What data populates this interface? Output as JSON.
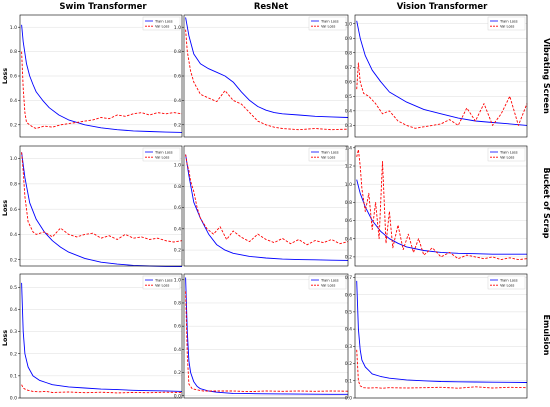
{
  "figure": {
    "columns": [
      "Swim Transformer",
      "ResNet",
      "Vision Transformer"
    ],
    "rows": [
      "Vibrating Screen",
      "Bucket of Scrap",
      "Emulsion"
    ],
    "ylabel": "Loss",
    "colors": {
      "train": "#0000ff",
      "val": "#ff0000"
    }
  },
  "chart_data": [
    {
      "type": "line",
      "column": "Swim Transformer",
      "row": "Vibrating Screen",
      "ylabel": "Loss",
      "ylim": [
        0.1,
        1.1
      ],
      "yticks": [
        0.2,
        0.4,
        0.6,
        0.8,
        1.0
      ],
      "xlim": [
        0,
        100
      ],
      "grid": true,
      "legend": "top-right",
      "series": [
        {
          "name": "Train Loss",
          "style": "solid",
          "color": "#0000ff",
          "x": [
            1,
            2,
            4,
            6,
            8,
            10,
            14,
            18,
            24,
            30,
            40,
            50,
            60,
            70,
            80,
            90,
            100
          ],
          "values": [
            1.02,
            0.88,
            0.7,
            0.6,
            0.53,
            0.47,
            0.4,
            0.34,
            0.28,
            0.24,
            0.2,
            0.175,
            0.16,
            0.15,
            0.145,
            0.14,
            0.138
          ]
        },
        {
          "name": "Val Loss",
          "style": "dashed",
          "color": "#ff0000",
          "x": [
            1,
            2,
            3,
            4,
            6,
            8,
            10,
            15,
            20,
            25,
            30,
            35,
            40,
            45,
            50,
            55,
            60,
            65,
            70,
            75,
            80,
            85,
            90,
            95,
            100
          ],
          "values": [
            0.8,
            0.5,
            0.3,
            0.22,
            0.2,
            0.18,
            0.17,
            0.19,
            0.18,
            0.2,
            0.21,
            0.22,
            0.23,
            0.24,
            0.26,
            0.25,
            0.28,
            0.27,
            0.29,
            0.3,
            0.28,
            0.3,
            0.29,
            0.3,
            0.29
          ]
        }
      ]
    },
    {
      "type": "line",
      "column": "ResNet",
      "row": "Vibrating Screen",
      "ylabel": "",
      "ylim": [
        0.1,
        1.1
      ],
      "yticks": [
        0.2,
        0.4,
        0.6,
        0.8,
        1.0
      ],
      "xlim": [
        0,
        100
      ],
      "grid": true,
      "legend": "top-right",
      "series": [
        {
          "name": "Train Loss",
          "style": "solid",
          "color": "#0000ff",
          "x": [
            1,
            3,
            6,
            10,
            15,
            20,
            25,
            30,
            35,
            40,
            45,
            50,
            55,
            60,
            70,
            80,
            90,
            100
          ],
          "values": [
            1.08,
            0.93,
            0.78,
            0.7,
            0.66,
            0.63,
            0.6,
            0.55,
            0.47,
            0.4,
            0.35,
            0.32,
            0.3,
            0.29,
            0.28,
            0.27,
            0.265,
            0.26
          ]
        },
        {
          "name": "Val Loss",
          "style": "dashed",
          "color": "#ff0000",
          "x": [
            1,
            2,
            4,
            6,
            8,
            10,
            15,
            20,
            25,
            30,
            35,
            40,
            45,
            50,
            55,
            60,
            70,
            80,
            90,
            100
          ],
          "values": [
            0.98,
            0.8,
            0.64,
            0.55,
            0.5,
            0.45,
            0.42,
            0.39,
            0.48,
            0.4,
            0.37,
            0.3,
            0.23,
            0.2,
            0.18,
            0.17,
            0.16,
            0.17,
            0.16,
            0.165
          ]
        }
      ]
    },
    {
      "type": "line",
      "column": "Vision Transformer",
      "row": "Vibrating Screen",
      "ylabel": "",
      "ylim": [
        0.22,
        1.06
      ],
      "yticks": [
        0.3,
        0.4,
        0.5,
        0.6,
        0.7,
        0.8,
        0.9,
        1.0
      ],
      "xlim": [
        0,
        100
      ],
      "grid": true,
      "legend": "top-right",
      "series": [
        {
          "name": "Train Loss",
          "style": "solid",
          "color": "#0000ff",
          "x": [
            1,
            3,
            6,
            10,
            15,
            20,
            30,
            40,
            50,
            60,
            70,
            80,
            90,
            100
          ],
          "values": [
            1.02,
            0.9,
            0.78,
            0.68,
            0.6,
            0.53,
            0.46,
            0.41,
            0.38,
            0.35,
            0.33,
            0.32,
            0.31,
            0.3
          ]
        },
        {
          "name": "Val Loss",
          "style": "dashed",
          "color": "#ff0000",
          "x": [
            1,
            2,
            3,
            5,
            8,
            12,
            16,
            20,
            25,
            30,
            35,
            40,
            45,
            50,
            55,
            60,
            65,
            70,
            75,
            80,
            85,
            90,
            95,
            100
          ],
          "values": [
            0.55,
            0.73,
            0.6,
            0.52,
            0.5,
            0.45,
            0.38,
            0.4,
            0.33,
            0.3,
            0.28,
            0.29,
            0.3,
            0.31,
            0.34,
            0.3,
            0.42,
            0.33,
            0.45,
            0.3,
            0.38,
            0.5,
            0.3,
            0.45
          ]
        }
      ]
    },
    {
      "type": "line",
      "column": "Swim Transformer",
      "row": "Bucket of Scrap",
      "ylabel": "Loss",
      "ylim": [
        0.15,
        1.1
      ],
      "yticks": [
        0.2,
        0.4,
        0.6,
        0.8,
        1.0
      ],
      "xlim": [
        0,
        100
      ],
      "grid": true,
      "legend": "top-right",
      "series": [
        {
          "name": "Train Loss",
          "style": "solid",
          "color": "#0000ff",
          "x": [
            1,
            3,
            6,
            10,
            15,
            20,
            25,
            30,
            40,
            50,
            60,
            70,
            80,
            90,
            100
          ],
          "values": [
            1.05,
            0.85,
            0.65,
            0.52,
            0.42,
            0.35,
            0.3,
            0.26,
            0.21,
            0.18,
            0.165,
            0.155,
            0.15,
            0.147,
            0.145
          ]
        },
        {
          "name": "Val Loss",
          "style": "dashed",
          "color": "#ff0000",
          "x": [
            1,
            2,
            3,
            5,
            8,
            10,
            15,
            20,
            25,
            30,
            35,
            40,
            45,
            50,
            55,
            60,
            65,
            70,
            75,
            80,
            85,
            90,
            95,
            100
          ],
          "values": [
            1.05,
            0.9,
            0.7,
            0.5,
            0.42,
            0.4,
            0.42,
            0.38,
            0.45,
            0.4,
            0.38,
            0.4,
            0.41,
            0.37,
            0.39,
            0.36,
            0.4,
            0.37,
            0.38,
            0.36,
            0.37,
            0.35,
            0.34,
            0.35
          ]
        }
      ]
    },
    {
      "type": "line",
      "column": "ResNet",
      "row": "Bucket of Scrap",
      "ylabel": "",
      "ylim": [
        0.05,
        1.18
      ],
      "yticks": [
        0.2,
        0.4,
        0.6,
        0.8,
        1.0
      ],
      "xlim": [
        0,
        100
      ],
      "grid": true,
      "legend": "top-right",
      "series": [
        {
          "name": "Train Loss",
          "style": "solid",
          "color": "#0000ff",
          "x": [
            1,
            3,
            6,
            10,
            15,
            20,
            25,
            30,
            40,
            50,
            60,
            70,
            80,
            90,
            100
          ],
          "values": [
            1.1,
            0.9,
            0.65,
            0.5,
            0.35,
            0.25,
            0.2,
            0.17,
            0.14,
            0.125,
            0.115,
            0.11,
            0.108,
            0.105,
            0.103
          ]
        },
        {
          "name": "Val Loss",
          "style": "dashed",
          "color": "#ff0000",
          "x": [
            1,
            2,
            3,
            4,
            6,
            8,
            10,
            14,
            18,
            22,
            26,
            30,
            35,
            40,
            45,
            50,
            55,
            60,
            65,
            70,
            75,
            80,
            85,
            90,
            95,
            100
          ],
          "values": [
            1.1,
            1.0,
            0.95,
            0.85,
            0.75,
            0.6,
            0.5,
            0.4,
            0.35,
            0.42,
            0.3,
            0.38,
            0.32,
            0.28,
            0.35,
            0.3,
            0.27,
            0.31,
            0.26,
            0.3,
            0.25,
            0.29,
            0.27,
            0.3,
            0.26,
            0.28
          ]
        }
      ]
    },
    {
      "type": "line",
      "column": "Vision Transformer",
      "row": "Bucket of Scrap",
      "ylabel": "",
      "ylim": [
        0.1,
        1.42
      ],
      "yticks": [
        0.2,
        0.4,
        0.6,
        0.8,
        1.0,
        1.2,
        1.4
      ],
      "xlim": [
        0,
        100
      ],
      "grid": true,
      "legend": "top-right",
      "series": [
        {
          "name": "Train Loss",
          "style": "solid",
          "color": "#0000ff",
          "x": [
            1,
            3,
            6,
            10,
            15,
            20,
            25,
            30,
            40,
            50,
            60,
            70,
            80,
            90,
            100
          ],
          "values": [
            1.05,
            0.9,
            0.75,
            0.6,
            0.48,
            0.4,
            0.35,
            0.31,
            0.27,
            0.25,
            0.24,
            0.235,
            0.23,
            0.23,
            0.23
          ]
        },
        {
          "name": "Val Loss",
          "style": "dashed",
          "color": "#ff0000",
          "x": [
            1,
            2,
            3,
            4,
            6,
            8,
            10,
            12,
            14,
            16,
            18,
            20,
            22,
            25,
            28,
            31,
            34,
            37,
            40,
            45,
            50,
            55,
            60,
            65,
            70,
            75,
            80,
            85,
            90,
            95,
            100
          ],
          "values": [
            1.3,
            1.38,
            1.2,
            0.95,
            0.7,
            0.9,
            0.5,
            0.8,
            0.4,
            1.25,
            0.35,
            0.7,
            0.3,
            0.55,
            0.28,
            0.45,
            0.25,
            0.4,
            0.22,
            0.3,
            0.2,
            0.25,
            0.18,
            0.22,
            0.2,
            0.18,
            0.2,
            0.17,
            0.19,
            0.17,
            0.18
          ]
        }
      ]
    },
    {
      "type": "line",
      "column": "Swim Transformer",
      "row": "Emulsion",
      "ylabel": "Loss",
      "ylim": [
        0.0,
        0.56
      ],
      "yticks": [
        0.0,
        0.1,
        0.2,
        0.3,
        0.4,
        0.5
      ],
      "xlim": [
        0,
        100
      ],
      "grid": true,
      "legend": "top-right",
      "series": [
        {
          "name": "Train Loss",
          "style": "solid",
          "color": "#0000ff",
          "x": [
            1,
            2,
            3,
            5,
            8,
            12,
            16,
            20,
            30,
            40,
            50,
            60,
            70,
            80,
            90,
            100
          ],
          "values": [
            0.52,
            0.3,
            0.2,
            0.14,
            0.1,
            0.08,
            0.07,
            0.06,
            0.05,
            0.045,
            0.04,
            0.038,
            0.035,
            0.033,
            0.032,
            0.03
          ]
        },
        {
          "name": "Val Loss",
          "style": "dashed",
          "color": "#ff0000",
          "x": [
            1,
            2,
            3,
            5,
            8,
            12,
            16,
            20,
            30,
            40,
            50,
            60,
            70,
            80,
            90,
            100
          ],
          "values": [
            0.06,
            0.045,
            0.04,
            0.035,
            0.03,
            0.028,
            0.03,
            0.025,
            0.027,
            0.024,
            0.026,
            0.023,
            0.025,
            0.024,
            0.026,
            0.025
          ]
        }
      ]
    },
    {
      "type": "line",
      "column": "ResNet",
      "row": "Emulsion",
      "ylabel": "",
      "ylim": [
        -0.02,
        1.05
      ],
      "yticks": [
        0.0,
        0.2,
        0.4,
        0.6,
        0.8,
        1.0
      ],
      "xlim": [
        0,
        100
      ],
      "grid": true,
      "legend": "top-right",
      "series": [
        {
          "name": "Train Loss",
          "style": "solid",
          "color": "#0000ff",
          "x": [
            1,
            2,
            3,
            4,
            6,
            8,
            10,
            15,
            20,
            30,
            40,
            50,
            60,
            70,
            80,
            90,
            100
          ],
          "values": [
            1.02,
            0.55,
            0.3,
            0.2,
            0.12,
            0.08,
            0.06,
            0.04,
            0.03,
            0.02,
            0.018,
            0.016,
            0.015,
            0.014,
            0.013,
            0.012,
            0.012
          ]
        },
        {
          "name": "Val Loss",
          "style": "dashed",
          "color": "#ff0000",
          "x": [
            1,
            2,
            3,
            5,
            8,
            12,
            20,
            30,
            40,
            50,
            60,
            70,
            80,
            90,
            100
          ],
          "values": [
            0.9,
            0.35,
            0.1,
            0.06,
            0.05,
            0.04,
            0.04,
            0.04,
            0.035,
            0.04,
            0.038,
            0.04,
            0.038,
            0.04,
            0.039
          ]
        }
      ]
    },
    {
      "type": "line",
      "column": "Vision Transformer",
      "row": "Emulsion",
      "ylabel": "",
      "ylim": [
        0.0,
        0.72
      ],
      "yticks": [
        0.0,
        0.1,
        0.2,
        0.3,
        0.4,
        0.5,
        0.6,
        0.7
      ],
      "xlim": [
        0,
        100
      ],
      "grid": true,
      "legend": "top-right",
      "series": [
        {
          "name": "Train Loss",
          "style": "solid",
          "color": "#0000ff",
          "x": [
            1,
            2,
            3,
            4,
            6,
            8,
            10,
            15,
            20,
            30,
            40,
            50,
            60,
            70,
            80,
            90,
            100
          ],
          "values": [
            0.68,
            0.4,
            0.28,
            0.22,
            0.18,
            0.16,
            0.14,
            0.125,
            0.115,
            0.105,
            0.1,
            0.096,
            0.094,
            0.093,
            0.092,
            0.091,
            0.09
          ]
        },
        {
          "name": "Val Loss",
          "style": "dashed",
          "color": "#ff0000",
          "x": [
            1,
            2,
            3,
            5,
            8,
            12,
            16,
            20,
            30,
            40,
            50,
            60,
            70,
            80,
            90,
            100
          ],
          "values": [
            0.28,
            0.1,
            0.07,
            0.06,
            0.058,
            0.06,
            0.057,
            0.06,
            0.058,
            0.06,
            0.062,
            0.057,
            0.065,
            0.058,
            0.062,
            0.06
          ]
        }
      ]
    }
  ]
}
